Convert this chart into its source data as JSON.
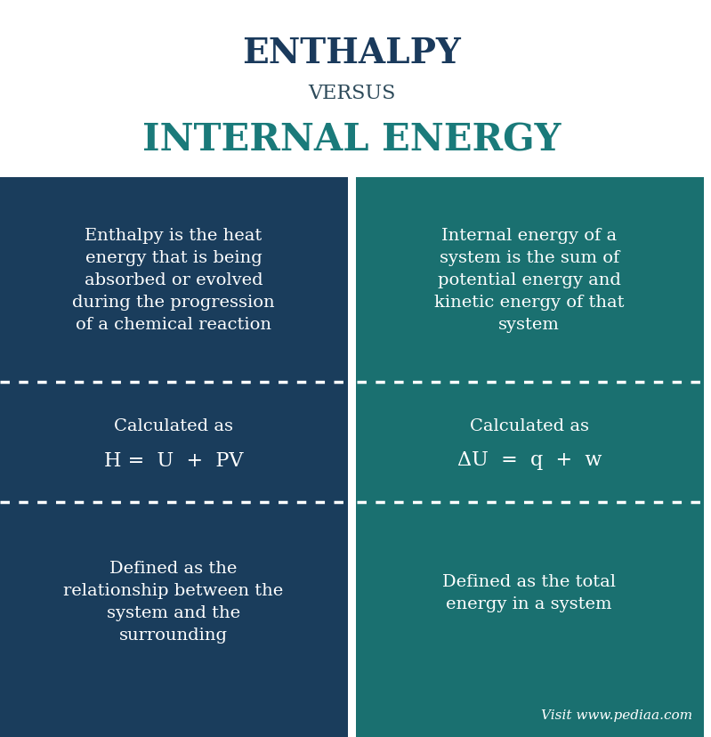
{
  "title1": "ENTHALPY",
  "title2": "VERSUS",
  "title3": "INTERNAL ENERGY",
  "title1_color": "#1a3a5c",
  "title2_color": "#2d4a5a",
  "title3_color": "#1a7a7a",
  "left_bg": "#1a3d5c",
  "right_bg": "#1a7070",
  "white": "#ffffff",
  "divider_color": "#ffffff",
  "cell_texts": {
    "top_left": "Enthalpy is the heat\nenergy that is being\nabsorbed or evolved\nduring the progression\nof a chemical reaction",
    "top_right": "Internal energy of a\nsystem is the sum of\npotential energy and\nkinetic energy of that\nsystem",
    "mid_left_label": "Calculated as",
    "mid_left_formula": "H =  U  +  PV",
    "mid_right_label": "Calculated as",
    "mid_right_formula": "ΔU  =  q  +  w",
    "bot_left": "Defined as the\nrelationship between the\nsystem and the\nsurrounding",
    "bot_right": "Defined as the total\nenergy in a system",
    "attribution": "Visit www.pediaa.com"
  },
  "font_size_title1": 28,
  "font_size_title2": 16,
  "font_size_title3": 30,
  "font_size_cell": 14,
  "font_size_formula": 16,
  "font_size_attribution": 11
}
